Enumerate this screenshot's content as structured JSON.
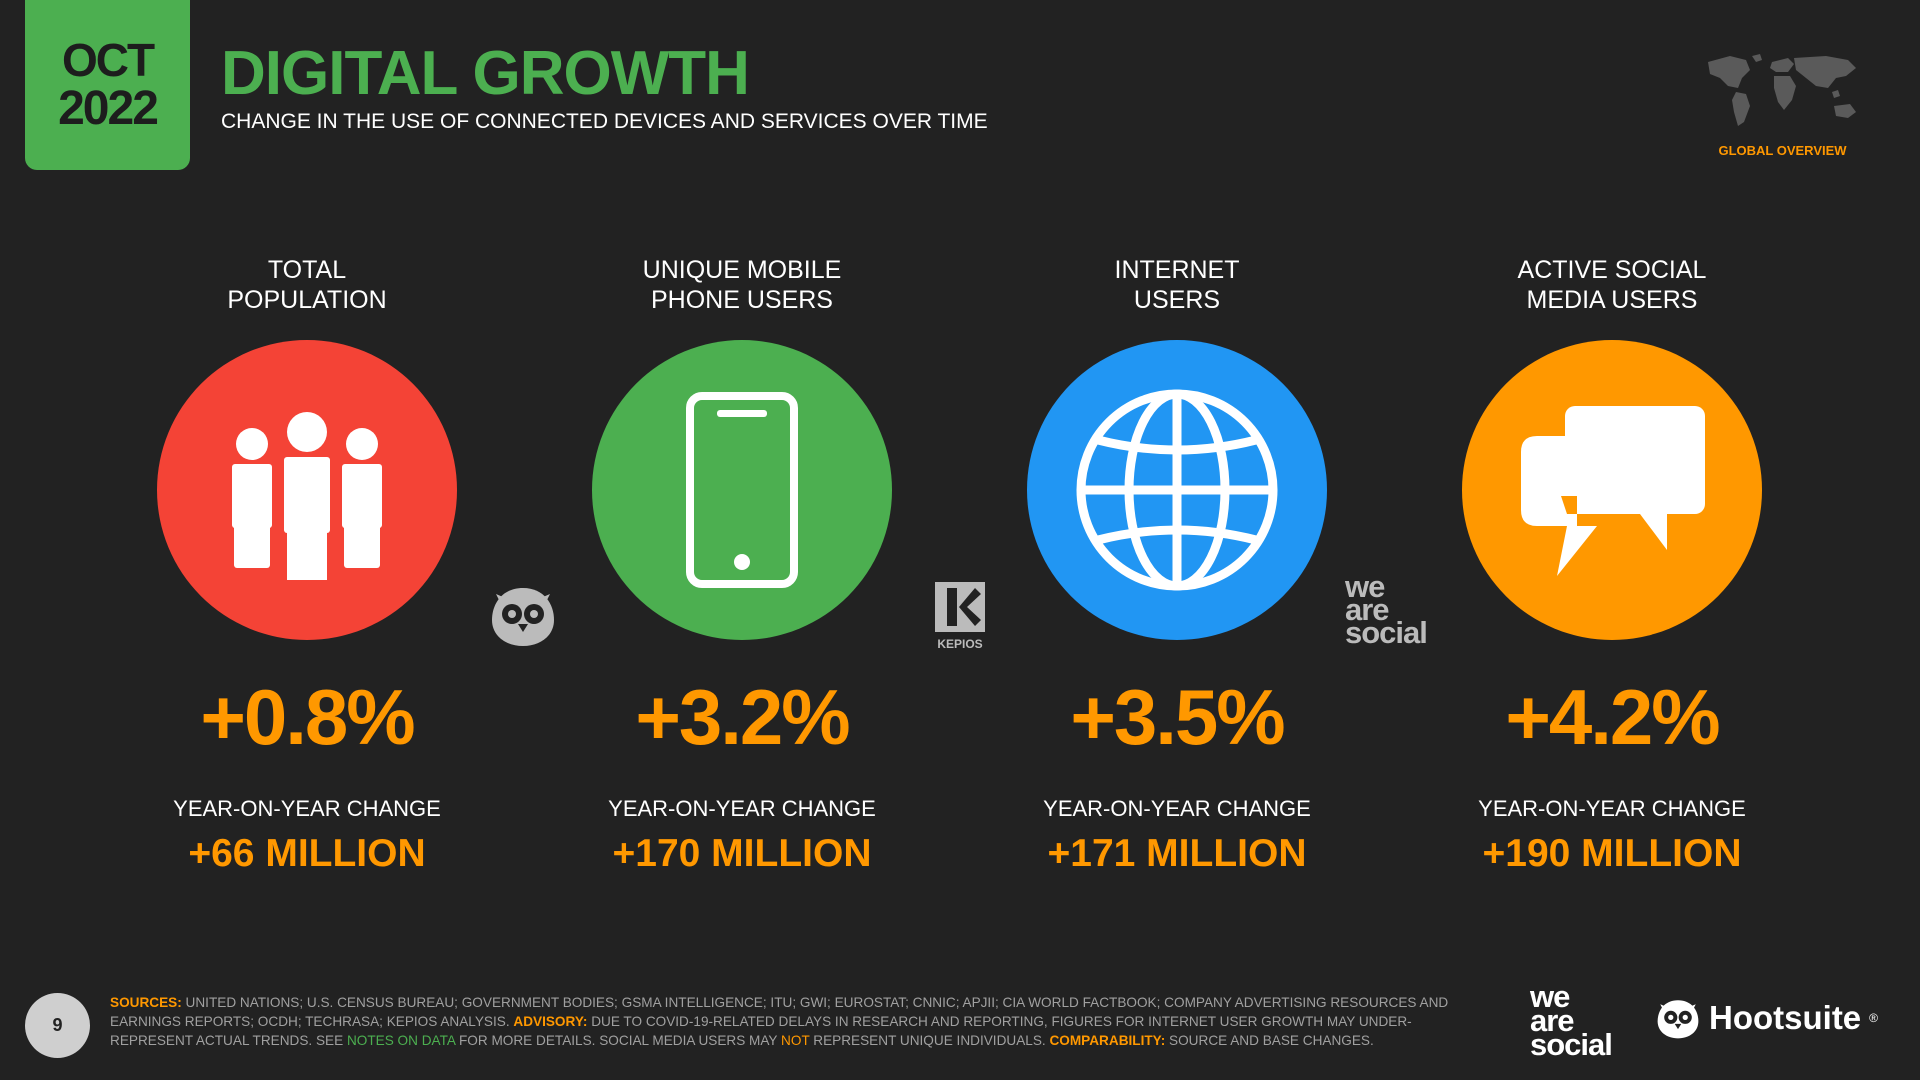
{
  "header": {
    "month": "OCT",
    "year": "2022",
    "title": "DIGITAL GROWTH",
    "subtitle": "CHANGE IN THE USE OF CONNECTED DEVICES AND SERVICES OVER TIME",
    "region_label": "GLOBAL OVERVIEW"
  },
  "colors": {
    "background": "#222222",
    "green": "#4caf50",
    "orange": "#ff9800",
    "red": "#f44336",
    "blue": "#2196f3"
  },
  "metrics": [
    {
      "title_line1": "TOTAL",
      "title_line2": "POPULATION",
      "icon": "people-icon",
      "color": "#f44336",
      "change_pct": "+0.8%",
      "change_label": "YEAR-ON-YEAR CHANGE",
      "change_abs": "+66 MILLION"
    },
    {
      "title_line1": "UNIQUE MOBILE",
      "title_line2": "PHONE USERS",
      "icon": "mobile-phone-icon",
      "color": "#4caf50",
      "change_pct": "+3.2%",
      "change_label": "YEAR-ON-YEAR CHANGE",
      "change_abs": "+170 MILLION"
    },
    {
      "title_line1": "INTERNET",
      "title_line2": "USERS",
      "icon": "globe-icon",
      "color": "#2196f3",
      "change_pct": "+3.5%",
      "change_label": "YEAR-ON-YEAR CHANGE",
      "change_abs": "+171 MILLION"
    },
    {
      "title_line1": "ACTIVE SOCIAL",
      "title_line2": "MEDIA USERS",
      "icon": "chat-bubbles-icon",
      "color": "#ff9800",
      "change_pct": "+4.2%",
      "change_label": "YEAR-ON-YEAR CHANGE",
      "change_abs": "+190 MILLION"
    }
  ],
  "watermarks": {
    "kepios": "KEPIOS",
    "was_we": "we",
    "was_are": "are",
    "was_social": "social"
  },
  "footer": {
    "page_number": "9",
    "sources_label": "SOURCES:",
    "sources_text": "UNITED NATIONS; U.S. CENSUS BUREAU; GOVERNMENT BODIES; GSMA INTELLIGENCE; ITU; GWI; EUROSTAT; CNNIC; APJII; CIA WORLD FACTBOOK; COMPANY ADVERTISING RESOURCES AND EARNINGS REPORTS; OCDH; TECHRASA; KEPIOS ANALYSIS.",
    "advisory_label": "ADVISORY:",
    "advisory_text": "DUE TO COVID-19-RELATED DELAYS IN RESEARCH AND REPORTING, FIGURES FOR INTERNET USER GROWTH MAY UNDER-REPRESENT ACTUAL TRENDS. SEE",
    "notes_link": "NOTES ON DATA",
    "advisory_text2": "FOR MORE DETAILS. SOCIAL MEDIA USERS MAY",
    "not_word": "NOT",
    "advisory_text3": "REPRESENT UNIQUE INDIVIDUALS.",
    "comparability_label": "COMPARABILITY:",
    "comparability_text": "SOURCE AND BASE CHANGES.",
    "brand_we": "we",
    "brand_are": "are",
    "brand_social": "social",
    "hootsuite": "Hootsuite",
    "reg_mark": "®"
  }
}
